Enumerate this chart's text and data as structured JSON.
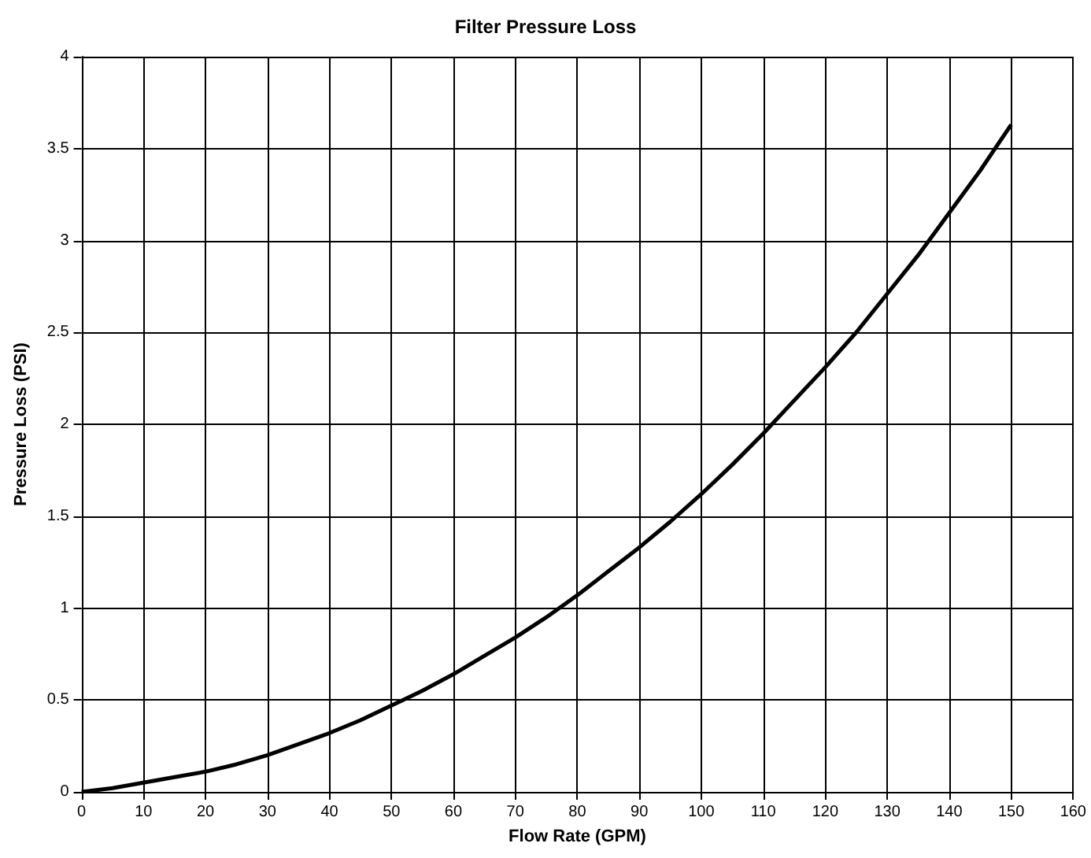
{
  "chart_data": {
    "type": "line",
    "title": "Filter Pressure Loss",
    "xlabel": "Flow Rate (GPM)",
    "ylabel": "Pressure Loss (PSI)",
    "x": [
      0,
      5,
      10,
      15,
      20,
      25,
      30,
      35,
      40,
      45,
      50,
      55,
      60,
      65,
      70,
      75,
      80,
      85,
      90,
      95,
      100,
      105,
      110,
      115,
      120,
      125,
      130,
      135,
      140,
      145,
      150
    ],
    "series": [
      {
        "color": "#000000",
        "values": [
          0,
          0.02,
          0.05,
          0.08,
          0.11,
          0.15,
          0.2,
          0.26,
          0.32,
          0.39,
          0.47,
          0.55,
          0.64,
          0.74,
          0.84,
          0.95,
          1.07,
          1.2,
          1.33,
          1.47,
          1.62,
          1.78,
          1.95,
          2.13,
          2.31,
          2.5,
          2.71,
          2.92,
          3.15,
          3.38,
          3.63
        ]
      }
    ],
    "xlim": [
      0,
      160
    ],
    "xticks": [
      0,
      10,
      20,
      30,
      40,
      50,
      60,
      70,
      80,
      90,
      100,
      110,
      120,
      130,
      140,
      150,
      160
    ],
    "ylim": [
      0,
      4
    ],
    "yticks": [
      0,
      0.5,
      1,
      1.5,
      2,
      2.5,
      3,
      3.5,
      4
    ],
    "grid": true,
    "marker": "none",
    "line_style": "solid"
  }
}
